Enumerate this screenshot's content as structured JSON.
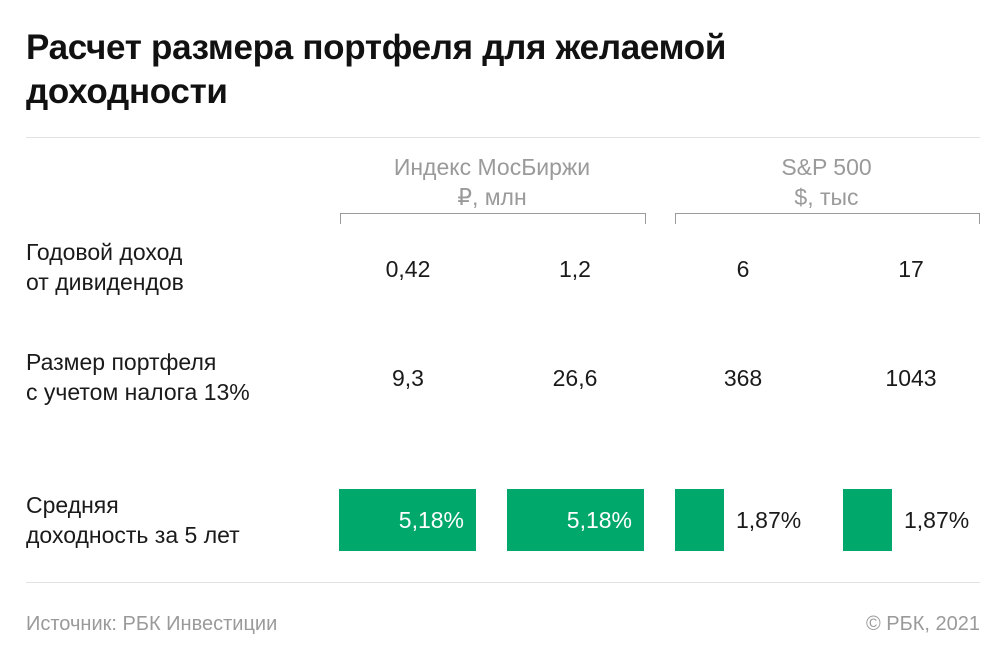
{
  "title": "Расчет размера портфеля для желаемой доходности",
  "groups": [
    {
      "name": "Индекс МосБиржи",
      "unit": "₽, млн"
    },
    {
      "name": "S&P 500",
      "unit": "$, тыс"
    }
  ],
  "rows": [
    {
      "label_1": "Годовой доход",
      "label_2": "от дивидендов"
    },
    {
      "label_1": "Размер портфеля",
      "label_2": "с учетом налога 13%"
    },
    {
      "label_1": "Средняя",
      "label_2": "доходность за 5 лет"
    }
  ],
  "footer": {
    "source": "Источник:  РБК Инвестиции",
    "copyright": "©  РБК, 2021"
  },
  "colors": {
    "bar": "#00a86b"
  },
  "chart_data": {
    "type": "table",
    "title": "Расчет размера портфеля для желаемой доходности",
    "columns": [
      "Индекс МосБиржи ₽, млн",
      "Индекс МосБиржи ₽, млн",
      "S&P 500 $, тыс",
      "S&P 500 $, тыс"
    ],
    "annual_income": [
      "0,42",
      "1,2",
      "6",
      "17"
    ],
    "portfolio_size": [
      "9,3",
      "26,6",
      "368",
      "1043"
    ],
    "avg_yield_labels": [
      "5,18%",
      "5,18%",
      "1,87%",
      "1,87%"
    ],
    "avg_yield_values": [
      5.18,
      5.18,
      1.87,
      1.87
    ]
  }
}
